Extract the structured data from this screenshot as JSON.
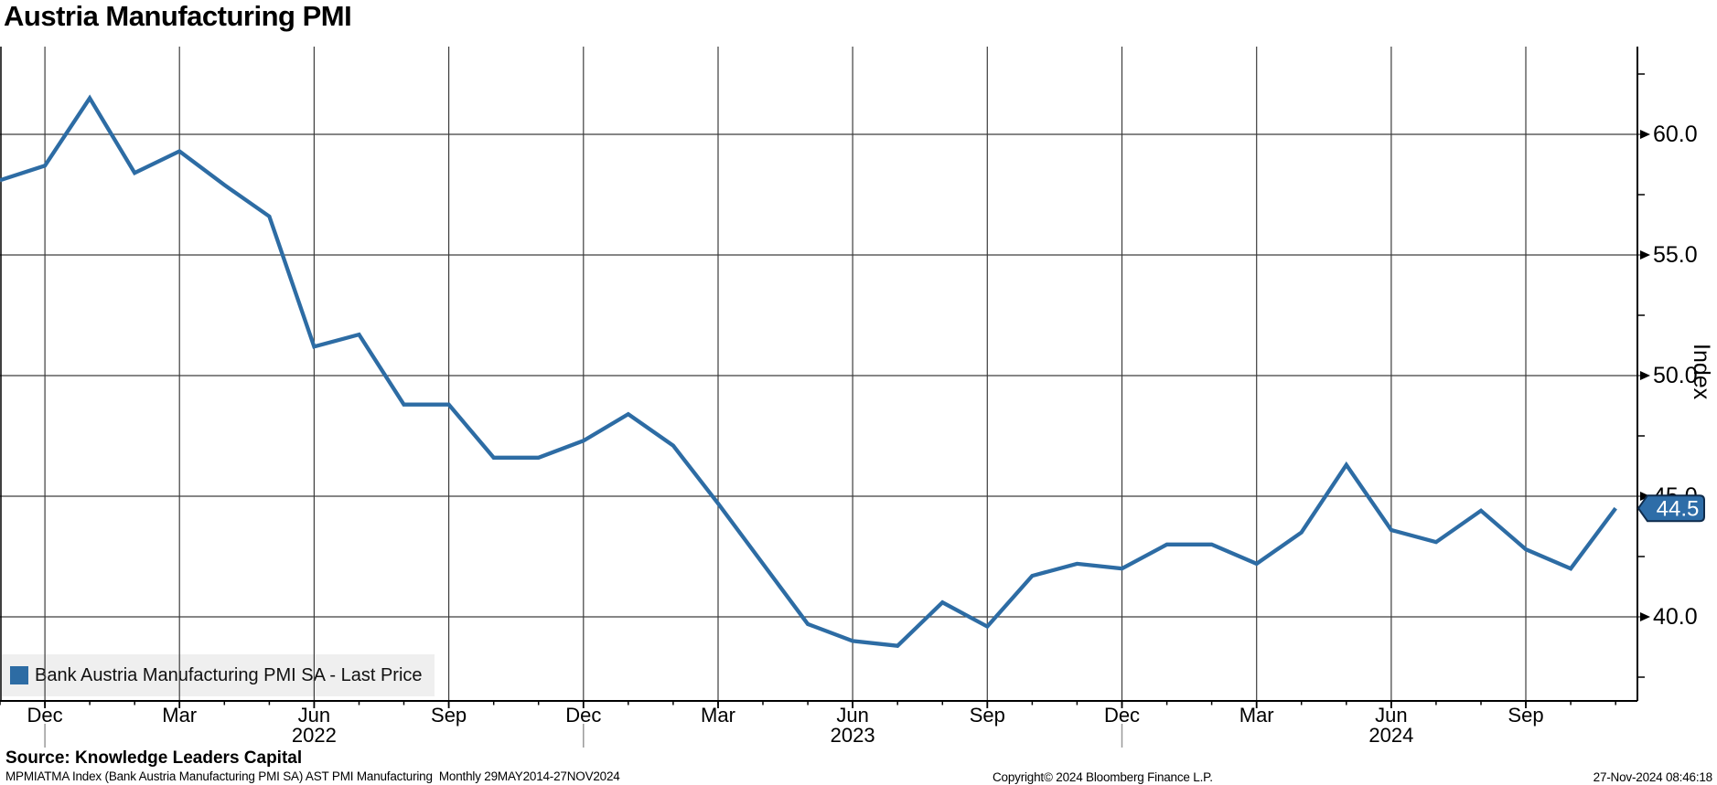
{
  "title": "Austria Manufacturing PMI",
  "legend": {
    "label": "Bank Austria Manufacturing PMI SA - Last Price"
  },
  "y_axis": {
    "title": "Index",
    "ticks": [
      {
        "value": 60,
        "label": "60.0"
      },
      {
        "value": 55,
        "label": "55.0"
      },
      {
        "value": 50,
        "label": "50.0"
      },
      {
        "value": 45,
        "label": "45.0"
      },
      {
        "value": 40,
        "label": "40.0"
      }
    ],
    "minor_tick_values": [
      62.5,
      57.5,
      52.5,
      47.5,
      42.5,
      37.5
    ],
    "last_value_label": "44.5"
  },
  "x_axis": {
    "tick_labels": [
      {
        "i": 1,
        "label": "Dec"
      },
      {
        "i": 4,
        "label": "Mar"
      },
      {
        "i": 7,
        "label": "Jun"
      },
      {
        "i": 10,
        "label": "Sep"
      },
      {
        "i": 13,
        "label": "Dec"
      },
      {
        "i": 16,
        "label": "Mar"
      },
      {
        "i": 19,
        "label": "Jun"
      },
      {
        "i": 22,
        "label": "Sep"
      },
      {
        "i": 25,
        "label": "Dec"
      },
      {
        "i": 28,
        "label": "Mar"
      },
      {
        "i": 31,
        "label": "Jun"
      },
      {
        "i": 34,
        "label": "Sep"
      }
    ],
    "year_labels": [
      {
        "i": 7,
        "label": "2022"
      },
      {
        "i": 19,
        "label": "2023"
      },
      {
        "i": 31,
        "label": "2024"
      }
    ],
    "year_separator_indices": [
      1,
      13,
      25
    ]
  },
  "footer": {
    "source": "Source: Knowledge Leaders Capital",
    "descriptor": "MPMIATMA Index (Bank Austria Manufacturing PMI SA) AST PMI Manufacturing  Monthly 29MAY2014-27NOV2024",
    "copyright": "Copyright© 2024 Bloomberg Finance L.P.",
    "timestamp": "27-Nov-2024 08:46:18"
  },
  "colors": {
    "line": "#2d6ca4",
    "badge_fill": "#2e6da8",
    "badge_border": "#0f2c4d",
    "badge_text": "#ffffff",
    "grid": "#3d3d3d",
    "axis": "#000000",
    "tick_text": "#000000",
    "year_separator": "#999999",
    "legend_bg": "#efefef"
  },
  "chart_data": {
    "type": "line",
    "title": "Austria Manufacturing PMI",
    "ylabel": "Index",
    "xlabel": "",
    "grid": true,
    "legend_position": "bottom-left",
    "y_gridlines": [
      40,
      45,
      50,
      55,
      60
    ],
    "y_minor_ticks": [
      37.5,
      42.5,
      47.5,
      52.5,
      57.5,
      62.5
    ],
    "y_visible_range": [
      36.5,
      63.6
    ],
    "x": [
      "Nov-2021",
      "Dec-2021",
      "Jan-2022",
      "Feb-2022",
      "Mar-2022",
      "Apr-2022",
      "May-2022",
      "Jun-2022",
      "Jul-2022",
      "Aug-2022",
      "Sep-2022",
      "Oct-2022",
      "Nov-2022",
      "Dec-2022",
      "Jan-2023",
      "Feb-2023",
      "Mar-2023",
      "Apr-2023",
      "May-2023",
      "Jun-2023",
      "Jul-2023",
      "Aug-2023",
      "Sep-2023",
      "Oct-2023",
      "Nov-2023",
      "Dec-2023",
      "Jan-2024",
      "Feb-2024",
      "Mar-2024",
      "Apr-2024",
      "May-2024",
      "Jun-2024",
      "Jul-2024",
      "Aug-2024",
      "Sep-2024",
      "Oct-2024",
      "Nov-2024"
    ],
    "series": [
      {
        "name": "Bank Austria Manufacturing PMI SA - Last Price",
        "values": [
          58.1,
          58.7,
          61.5,
          58.4,
          59.3,
          57.9,
          56.6,
          51.2,
          51.7,
          48.8,
          48.8,
          46.6,
          46.6,
          47.3,
          48.4,
          47.1,
          44.7,
          42.2,
          39.7,
          39.0,
          38.8,
          40.6,
          39.6,
          41.7,
          42.2,
          42.0,
          43.0,
          43.0,
          42.2,
          43.5,
          46.3,
          43.6,
          43.1,
          44.4,
          42.8,
          42.0,
          44.5
        ]
      }
    ],
    "last_value": 44.5
  }
}
